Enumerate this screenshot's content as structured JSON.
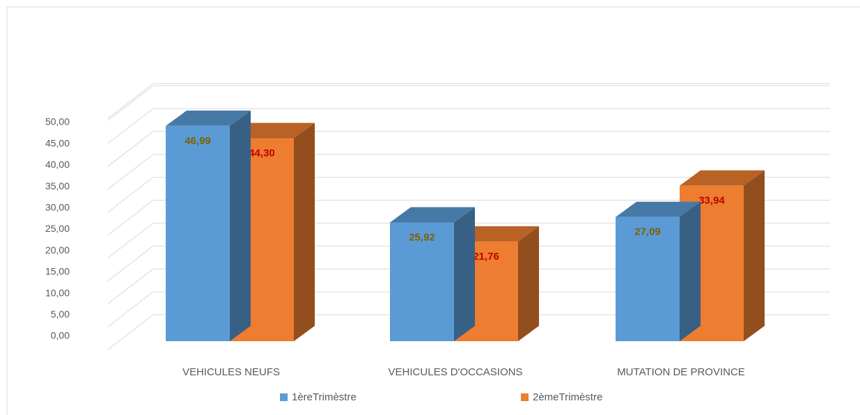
{
  "chart_data": {
    "type": "bar3d",
    "categories": [
      "VEHICULES NEUFS",
      "VEHICULES D'OCCASIONS",
      "MUTATION DE PROVINCE"
    ],
    "series": [
      {
        "name": "1èreTrimèstre",
        "color": "#5b9bd5",
        "label_color": "#7f6000",
        "values": [
          46.99,
          25.92,
          27.09
        ],
        "value_labels": [
          "46,99",
          "25,92",
          "27,09"
        ]
      },
      {
        "name": "2èmeTrimèstre",
        "color": "#ed7d31",
        "label_color": "#c00000",
        "values": [
          44.3,
          21.76,
          33.94
        ],
        "value_labels": [
          "44,30",
          "21,76",
          "33,94"
        ]
      }
    ],
    "ylim": [
      0,
      50
    ],
    "yticks": [
      {
        "value": 0,
        "label": "0,00"
      },
      {
        "value": 5,
        "label": "5,00"
      },
      {
        "value": 10,
        "label": "10,00"
      },
      {
        "value": 15,
        "label": "15,00"
      },
      {
        "value": 20,
        "label": "20,00"
      },
      {
        "value": 25,
        "label": "25,00"
      },
      {
        "value": 30,
        "label": "30,00"
      },
      {
        "value": 35,
        "label": "35,00"
      },
      {
        "value": 40,
        "label": "40,00"
      },
      {
        "value": 45,
        "label": "45,00"
      },
      {
        "value": 50,
        "label": "50,00"
      }
    ],
    "grid": true,
    "legend": "bottom"
  }
}
